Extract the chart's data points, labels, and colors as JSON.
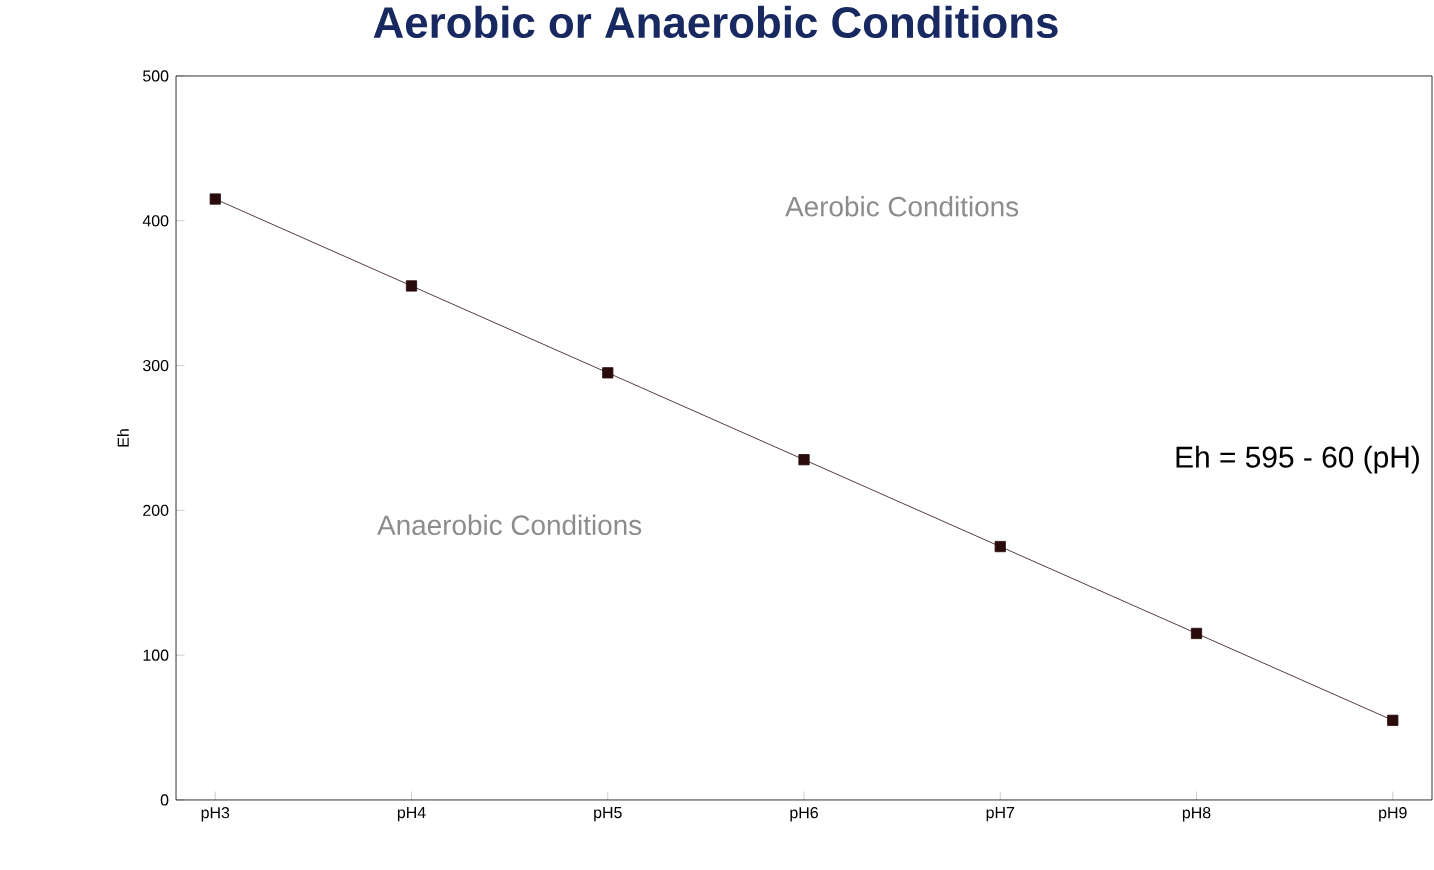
{
  "chart_data": {
    "type": "line",
    "title": "Aerobic or Anaerobic Conditions",
    "ylabel": "Eh",
    "categories": [
      "pH3",
      "pH4",
      "pH5",
      "pH6",
      "pH7",
      "pH8",
      "pH9"
    ],
    "values": [
      415,
      355,
      295,
      235,
      175,
      115,
      55
    ],
    "color": "#2a0c0c",
    "marker": "square",
    "line_style": "solid",
    "ylim": [
      0,
      500
    ],
    "yticks": [
      0,
      100,
      200,
      300,
      400,
      500
    ],
    "grid": false,
    "annotations": [
      "Aerobic Conditions",
      "Anaerobic Conditions",
      "Eh = 595 - 60 (pH)"
    ]
  }
}
